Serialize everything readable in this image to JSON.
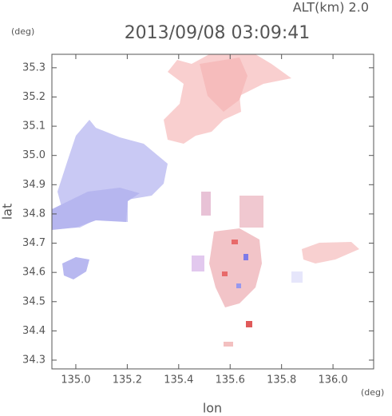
{
  "chart_data": {
    "type": "map",
    "title": "2013/09/08 03:09:41",
    "annotation": "ALT(km) 2.0",
    "xlabel": "lon",
    "ylabel": "lat",
    "x_unit": "(deg)",
    "y_unit": "(deg)",
    "xlim": [
      134.907,
      136.158
    ],
    "ylim": [
      34.27,
      35.346
    ],
    "xticks": [
      {
        "value": 135.0,
        "label": "135.0"
      },
      135.2,
      135.4,
      135.6,
      135.8,
      {
        "value": 136.0,
        "label": "136.0"
      }
    ],
    "yticks": [
      34.3,
      34.4,
      34.5,
      34.6,
      34.7,
      34.8,
      34.9,
      {
        "value": 35.0,
        "label": "35.0"
      },
      35.1,
      35.2,
      35.3
    ]
  }
}
